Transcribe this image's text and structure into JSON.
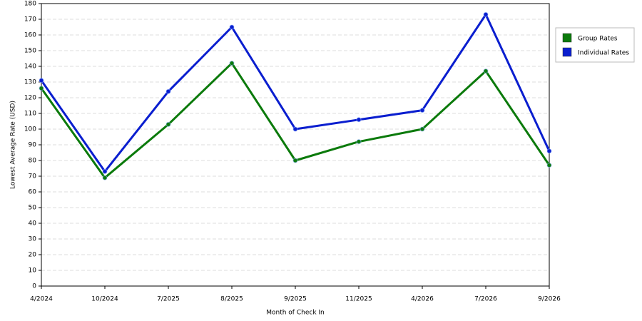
{
  "chart_data": {
    "type": "line",
    "x_label": "Month of Check In",
    "y_label": "Lowest Average Rate (USD)",
    "categories": [
      "4/2024",
      "10/2024",
      "7/2025",
      "8/2025",
      "9/2025",
      "11/2025",
      "4/2026",
      "7/2026",
      "9/2026"
    ],
    "series": [
      {
        "name": "Group Rates",
        "color": "#0b7a0b",
        "values": [
          126,
          69,
          103,
          142,
          80,
          92,
          100,
          137,
          77
        ]
      },
      {
        "name": "Individual Rates",
        "color": "#0a1ecf",
        "values": [
          131,
          73,
          124,
          165,
          100,
          106,
          112,
          173,
          86
        ]
      }
    ],
    "ylim": [
      0,
      180
    ],
    "yticks": [
      0,
      10,
      20,
      30,
      40,
      50,
      60,
      70,
      80,
      90,
      100,
      110,
      120,
      130,
      140,
      150,
      160,
      170,
      180
    ],
    "grid": true,
    "legend": "right"
  }
}
